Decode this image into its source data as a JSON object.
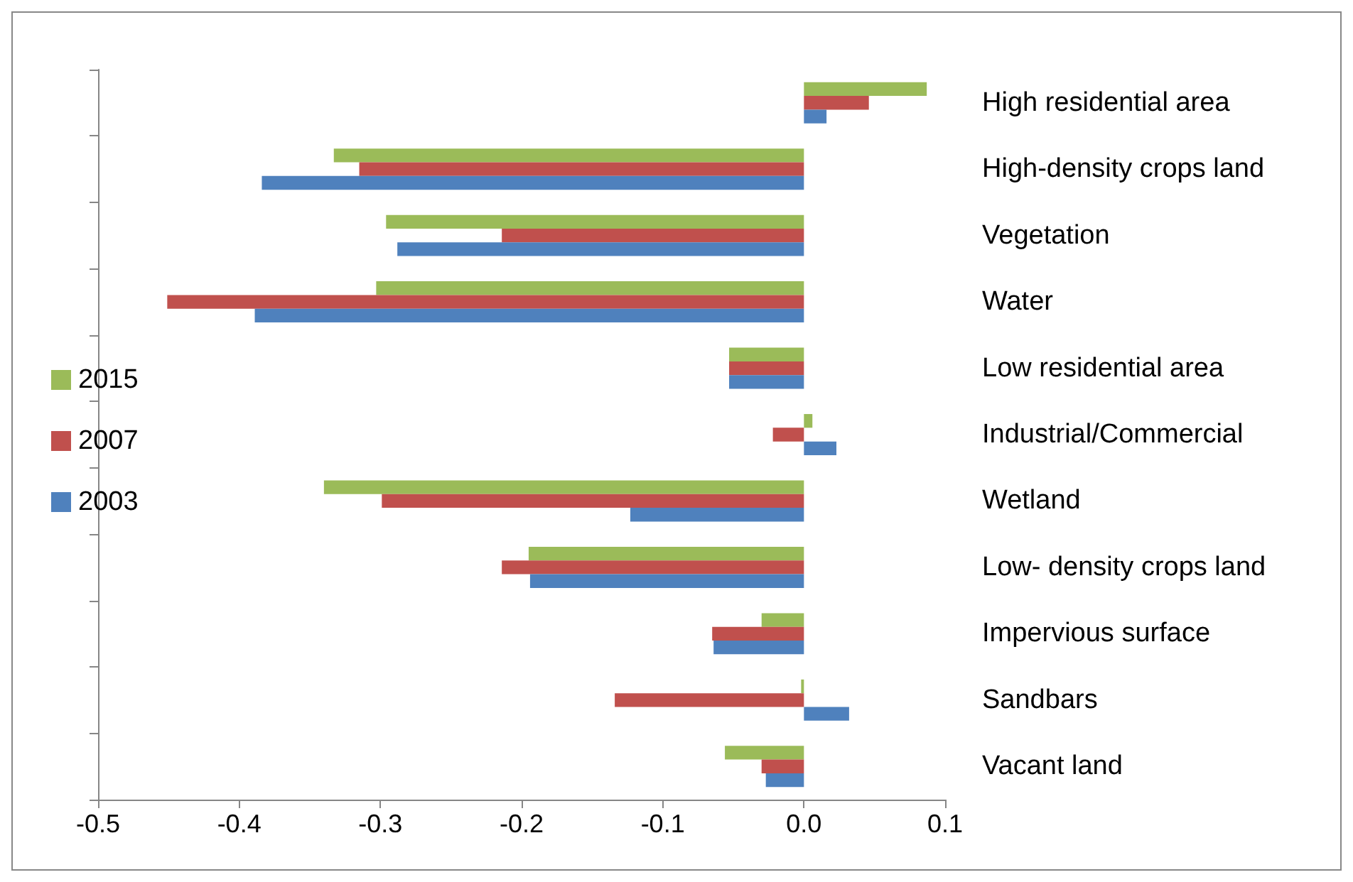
{
  "chart_data": {
    "type": "bar",
    "orientation": "horizontal",
    "categories": [
      "High residential area",
      "High-density crops land",
      "Vegetation",
      "Water",
      "Low residential area",
      "Industrial/Commercial",
      "Wetland",
      "Low- density crops land",
      "Impervious surface",
      "Sandbars",
      "Vacant land"
    ],
    "series": [
      {
        "name": "2015",
        "color": "#9bbb59",
        "values": [
          0.087,
          -0.333,
          -0.296,
          -0.303,
          -0.053,
          0.006,
          -0.34,
          -0.195,
          -0.03,
          -0.002,
          -0.056
        ]
      },
      {
        "name": "2007",
        "color": "#c0504d",
        "values": [
          0.046,
          -0.315,
          -0.214,
          -0.451,
          -0.053,
          -0.022,
          -0.299,
          -0.214,
          -0.065,
          -0.134,
          -0.03
        ]
      },
      {
        "name": "2003",
        "color": "#4f81bd",
        "values": [
          0.016,
          -0.384,
          -0.288,
          -0.389,
          -0.053,
          0.023,
          -0.123,
          -0.194,
          -0.064,
          0.032,
          -0.027
        ]
      }
    ],
    "xlim": [
      -0.5,
      0.1
    ],
    "xticks": [
      -0.5,
      -0.4,
      -0.3,
      -0.2,
      -0.1,
      {
        "value": 0,
        "label": "0.0"
      },
      0.1
    ],
    "grid": false,
    "legend": "left"
  }
}
